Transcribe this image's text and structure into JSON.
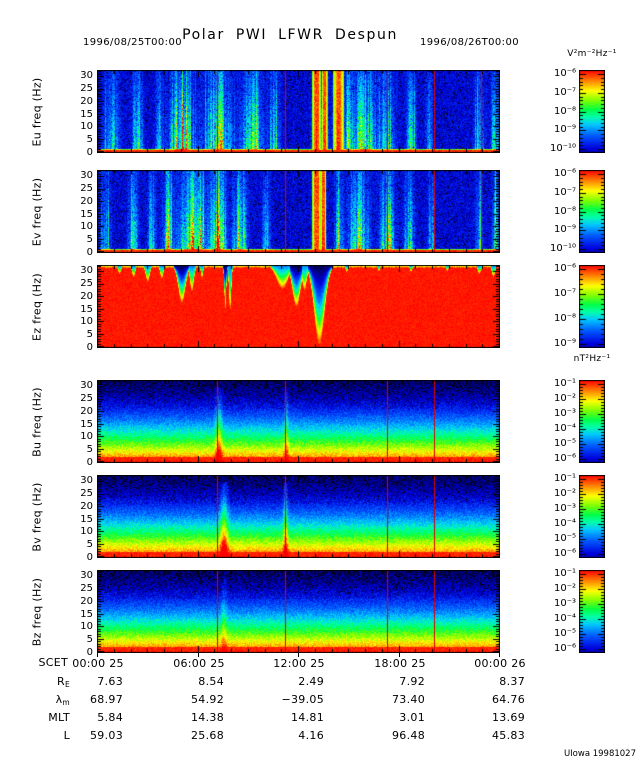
{
  "header": {
    "title": "Polar PWI LFWR Despun",
    "start_time": "1996/08/25T00:00",
    "end_time": "1996/08/26T00:00"
  },
  "credit": "UIowa 19981027",
  "colors": {
    "marker_line": "#dd0000",
    "axis": "#000000",
    "background": "#ffffff"
  },
  "chart_data": {
    "type": "heatmap",
    "title": "Polar PWI LFWR Despun",
    "time_start": "1996/08/25T00:00",
    "time_end": "1996/08/26T00:00",
    "x_axis": {
      "label": "SCET",
      "tick_labels": [
        "00:00 25",
        "06:00 25",
        "12:00 25",
        "18:00 25",
        "00:00 26"
      ],
      "hours_span": 24,
      "major_tick_hours": 6,
      "minor_tick_hours": 1
    },
    "y_axis": {
      "unit": "Hz",
      "ticks": [
        30,
        25,
        20,
        15,
        10,
        5,
        0
      ],
      "max": 32
    },
    "electric_unit": "V²m⁻²Hz⁻¹",
    "magnetic_unit": "nT²Hz⁻¹",
    "panels": [
      {
        "id": "eu",
        "ylabel": "Eu freq (Hz)",
        "style": "electric",
        "seed": 101,
        "cbar_ticks": [
          "10⁻⁶",
          "10⁻⁷",
          "10⁻⁸",
          "10⁻⁹",
          "10⁻¹⁰"
        ],
        "markers": [
          0.298,
          0.467,
          0.722,
          0.839,
          0.955
        ],
        "features": [
          {
            "c": 0.035,
            "w": 0.012,
            "a": 0.55
          },
          {
            "c": 0.1,
            "w": 0.008,
            "a": 0.75
          },
          {
            "c": 0.155,
            "w": 0.006,
            "a": 0.6
          },
          {
            "c": 0.21,
            "w": 0.018,
            "a": 1.05
          },
          {
            "c": 0.3,
            "w": 0.022,
            "a": 0.95
          },
          {
            "c": 0.385,
            "w": 0.016,
            "a": 0.9
          },
          {
            "c": 0.44,
            "w": 0.008,
            "a": 0.6
          },
          {
            "c": 0.545,
            "w": 0.006,
            "a": 1.35,
            "full": true
          },
          {
            "c": 0.565,
            "w": 0.004,
            "a": 1.25,
            "full": true
          },
          {
            "c": 0.6,
            "w": 0.008,
            "a": 1.1,
            "full": true
          },
          {
            "c": 0.625,
            "w": 0.005,
            "a": 0.9
          },
          {
            "c": 0.665,
            "w": 0.018,
            "a": 0.95
          },
          {
            "c": 0.72,
            "w": 0.012,
            "a": 0.7
          },
          {
            "c": 0.78,
            "w": 0.007,
            "a": 0.8
          },
          {
            "c": 0.825,
            "w": 0.005,
            "a": 0.55
          },
          {
            "c": 0.95,
            "w": 0.008,
            "a": 0.55
          },
          {
            "c": 0.99,
            "w": 0.006,
            "a": 0.85
          }
        ]
      },
      {
        "id": "ev",
        "ylabel": "Ev freq (Hz)",
        "style": "electric",
        "seed": 202,
        "cbar_ticks": [
          "10⁻⁶",
          "10⁻⁷",
          "10⁻⁸",
          "10⁻⁹",
          "10⁻¹⁰"
        ],
        "markers": [
          0.298,
          0.467,
          0.722,
          0.839,
          0.955
        ],
        "features": [
          {
            "c": 0.02,
            "w": 0.008,
            "a": 0.6
          },
          {
            "c": 0.09,
            "w": 0.008,
            "a": 0.85
          },
          {
            "c": 0.135,
            "w": 0.006,
            "a": 0.7
          },
          {
            "c": 0.175,
            "w": 0.008,
            "a": 0.95
          },
          {
            "c": 0.24,
            "w": 0.022,
            "a": 1.25
          },
          {
            "c": 0.3,
            "w": 0.012,
            "a": 1.1
          },
          {
            "c": 0.355,
            "w": 0.01,
            "a": 0.95
          },
          {
            "c": 0.42,
            "w": 0.006,
            "a": 0.6
          },
          {
            "c": 0.545,
            "w": 0.006,
            "a": 1.35,
            "full": true
          },
          {
            "c": 0.562,
            "w": 0.004,
            "a": 1.25,
            "full": true
          },
          {
            "c": 0.6,
            "w": 0.006,
            "a": 1.0
          },
          {
            "c": 0.65,
            "w": 0.016,
            "a": 0.95
          },
          {
            "c": 0.72,
            "w": 0.012,
            "a": 0.8
          },
          {
            "c": 0.775,
            "w": 0.008,
            "a": 0.7
          },
          {
            "c": 0.83,
            "w": 0.005,
            "a": 0.5
          },
          {
            "c": 0.95,
            "w": 0.006,
            "a": 0.5
          },
          {
            "c": 0.99,
            "w": 0.005,
            "a": 0.8
          }
        ]
      },
      {
        "id": "ez",
        "ylabel": "Ez freq (Hz)",
        "style": "saturated",
        "seed": 303,
        "cbar_ticks": [
          "10⁻⁶",
          "10⁻⁷",
          "10⁻⁸",
          "10⁻⁹"
        ],
        "markers": [],
        "features": [
          {
            "c": 0.055,
            "w": 0.004,
            "d": 0.1,
            "cold": false
          },
          {
            "c": 0.09,
            "w": 0.004,
            "d": 0.14,
            "cold": false
          },
          {
            "c": 0.125,
            "w": 0.005,
            "d": 0.2,
            "cold": false
          },
          {
            "c": 0.16,
            "w": 0.004,
            "d": 0.16,
            "cold": false
          },
          {
            "c": 0.21,
            "w": 0.009,
            "d": 0.45,
            "cold": true
          },
          {
            "c": 0.235,
            "w": 0.005,
            "d": 0.32,
            "cold": false
          },
          {
            "c": 0.26,
            "w": 0.003,
            "d": 0.15,
            "cold": false
          },
          {
            "c": 0.318,
            "w": 0.0025,
            "d": 0.52,
            "cold": true
          },
          {
            "c": 0.33,
            "w": 0.003,
            "d": 0.55,
            "cold": false
          },
          {
            "c": 0.46,
            "w": 0.014,
            "d": 0.28,
            "cold": false
          },
          {
            "c": 0.495,
            "w": 0.01,
            "d": 0.5,
            "cold": true
          },
          {
            "c": 0.515,
            "w": 0.006,
            "d": 0.3,
            "cold": false
          },
          {
            "c": 0.552,
            "w": 0.013,
            "d": 0.95,
            "cold": true
          },
          {
            "c": 0.62,
            "w": 0.003,
            "d": 0.08,
            "cold": false
          },
          {
            "c": 0.7,
            "w": 0.003,
            "d": 0.07,
            "cold": false
          },
          {
            "c": 0.78,
            "w": 0.003,
            "d": 0.08,
            "cold": false
          },
          {
            "c": 0.87,
            "w": 0.003,
            "d": 0.07,
            "cold": false
          },
          {
            "c": 0.95,
            "w": 0.004,
            "d": 0.1,
            "cold": false
          },
          {
            "c": 0.985,
            "w": 0.004,
            "d": 0.14,
            "cold": false
          }
        ]
      },
      {
        "id": "bu",
        "ylabel": "Bu freq (Hz)",
        "style": "banded",
        "seed": 404,
        "cbar_ticks": [
          "10⁻¹",
          "10⁻²",
          "10⁻³",
          "10⁻⁴",
          "10⁻⁵",
          "10⁻⁶"
        ],
        "markers": [
          0.298,
          0.467,
          0.722,
          0.839
        ],
        "features": [
          {
            "c": 0.302,
            "w": 0.006,
            "a": 0.5
          },
          {
            "c": 0.47,
            "w": 0.004,
            "a": 0.35
          }
        ]
      },
      {
        "id": "bv",
        "ylabel": "Bv freq (Hz)",
        "style": "banded",
        "seed": 505,
        "cbar_ticks": [
          "10⁻¹",
          "10⁻²",
          "10⁻³",
          "10⁻⁴",
          "10⁻⁵",
          "10⁻⁶"
        ],
        "markers": [
          0.298,
          0.467,
          0.722,
          0.839
        ],
        "features": [
          {
            "c": 0.315,
            "w": 0.007,
            "a": 0.6
          },
          {
            "c": 0.468,
            "w": 0.004,
            "a": 0.55
          }
        ]
      },
      {
        "id": "bz",
        "ylabel": "Bz freq (Hz)",
        "style": "banded",
        "seed": 606,
        "cbar_ticks": [
          "10⁻¹",
          "10⁻²",
          "10⁻³",
          "10⁻⁴",
          "10⁻⁵",
          "10⁻⁶"
        ],
        "markers": [
          0.298,
          0.467,
          0.722,
          0.839
        ],
        "features": [
          {
            "c": 0.315,
            "w": 0.005,
            "a": 0.3
          }
        ]
      }
    ],
    "ephemeris": {
      "rows": [
        {
          "label": "R",
          "sub": "E",
          "values": [
            "7.63",
            "8.54",
            "2.49",
            "7.92",
            "8.37"
          ]
        },
        {
          "label": "λ",
          "sub": "m",
          "values": [
            "68.97",
            "54.92",
            "−39.05",
            "73.40",
            "64.76"
          ]
        },
        {
          "label": "MLT",
          "sub": "",
          "values": [
            "5.84",
            "14.38",
            "14.81",
            "3.01",
            "13.69"
          ]
        },
        {
          "label": "L",
          "sub": "",
          "values": [
            "59.03",
            "25.68",
            "4.16",
            "96.48",
            "45.83"
          ]
        }
      ]
    }
  }
}
